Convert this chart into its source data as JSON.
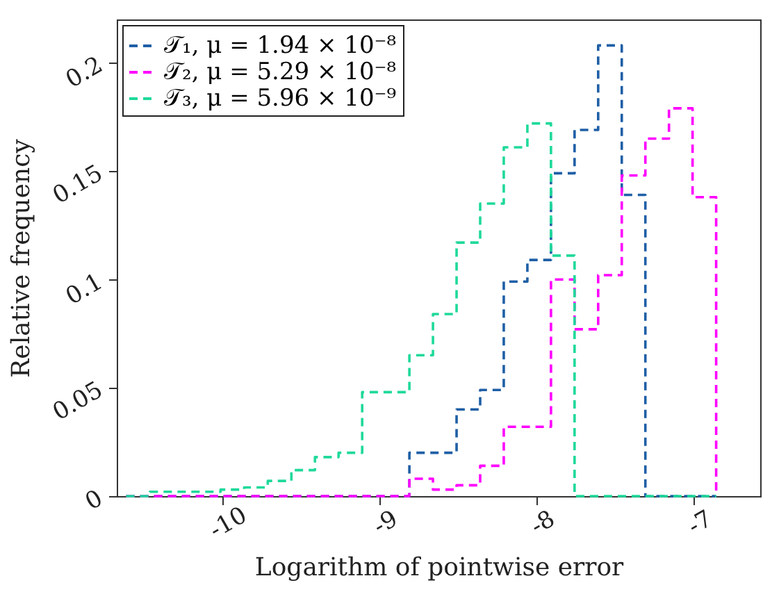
{
  "chart_data": {
    "type": "histogram",
    "xlabel": "Logarithm of pointwise error",
    "ylabel": "Relative frequency",
    "bins": [
      -10.61,
      -10.46,
      -10.31,
      -10.16,
      -10.01,
      -9.86,
      -9.71,
      -9.56,
      -9.41,
      -9.26,
      -9.11,
      -8.96,
      -8.81,
      -8.66,
      -8.51,
      -8.36,
      -8.21,
      -8.06,
      -7.91,
      -7.76,
      -7.61,
      -7.46,
      -7.31,
      -7.16,
      -7.01,
      -6.86
    ],
    "series": [
      {
        "name": "𝒯₁, μ = 1.94 × 10⁻⁸",
        "color": "#1f5fa6",
        "values": [
          0,
          0,
          0,
          0,
          0,
          0,
          0,
          0,
          0,
          0,
          0,
          0,
          0.02,
          0.02,
          0.04,
          0.049,
          0.099,
          0.109,
          0.149,
          0.169,
          0.208,
          0.139,
          0,
          0,
          0
        ]
      },
      {
        "name": "𝒯₂, μ = 5.29 × 10⁻⁸",
        "color": "#ff00ff",
        "values": [
          0,
          0,
          0,
          0,
          0,
          0,
          0,
          0,
          0,
          0,
          0,
          0,
          0.008,
          0.003,
          0.005,
          0.014,
          0.032,
          0.032,
          0.1,
          0.077,
          0.102,
          0.148,
          0.165,
          0.179,
          0.138
        ]
      },
      {
        "name": "𝒯₃, μ = 5.96 × 10⁻⁹",
        "color": "#1fd99a",
        "values": [
          0,
          0.002,
          0.002,
          0.002,
          0.003,
          0.004,
          0.007,
          0.012,
          0.018,
          0.02,
          0.048,
          0.048,
          0.065,
          0.084,
          0.117,
          0.135,
          0.161,
          0.172,
          0.111,
          0,
          0,
          0,
          0,
          0,
          0
        ]
      }
    ],
    "xlim": [
      -10.67,
      -6.58
    ],
    "xticks": [
      -10,
      -9,
      -8,
      -7
    ],
    "ylim": [
      0,
      0.22
    ],
    "yticks": [
      0,
      0.05,
      0.1,
      0.15,
      0.2
    ],
    "grid": false,
    "legend": "top left",
    "line_style": "dashed"
  }
}
